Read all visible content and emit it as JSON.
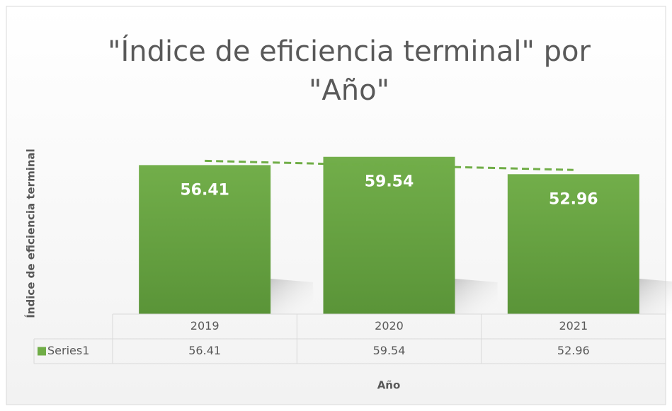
{
  "chart_data": {
    "type": "bar",
    "title_lines": [
      "\"Índice de eficiencia terminal\" por",
      "\"Año\""
    ],
    "y_label": "Índice de eficiencia terminal",
    "x_label": "Año",
    "categories": [
      "2019",
      "2020",
      "2021"
    ],
    "series": [
      {
        "name": "Series1",
        "color": "#70ad47",
        "values": [
          56.41,
          59.54,
          52.96
        ]
      }
    ],
    "ylim": [
      0,
      60
    ],
    "trendline": "linear",
    "data_table": true
  }
}
